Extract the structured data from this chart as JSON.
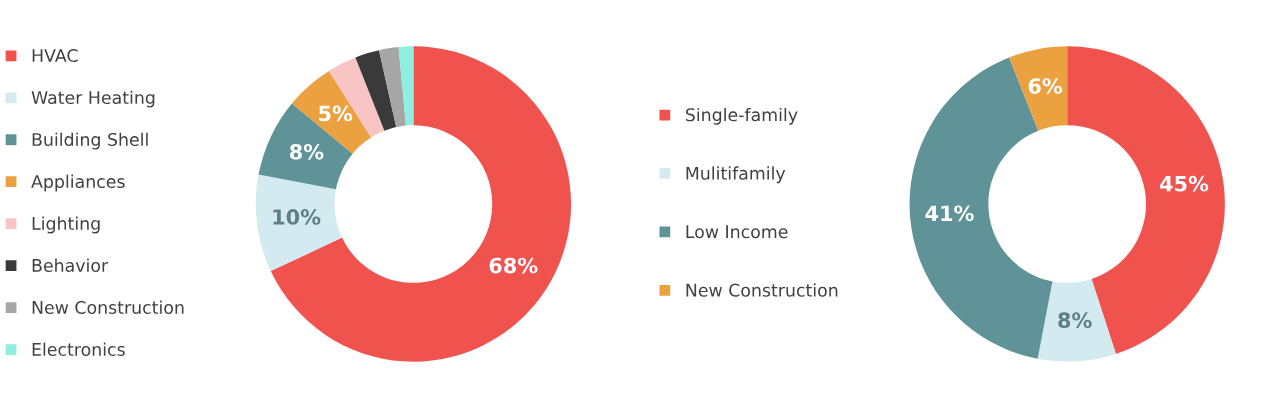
{
  "chart_data": [
    {
      "type": "donut",
      "categories": [
        "HVAC",
        "Water Heating",
        "Building Shell",
        "Appliances",
        "Lighting",
        "Behavior",
        "New Construction",
        "Electronics"
      ],
      "values": [
        68,
        10,
        8,
        5,
        3,
        2.5,
        2,
        1.5
      ],
      "value_labels": [
        "68%",
        "10%",
        "8%",
        "5%",
        null,
        null,
        null,
        null
      ],
      "colors": [
        "#f0524d",
        "#d3eaf1",
        "#5f9398",
        "#eca140",
        "#f9c4c4",
        "#3a3a3a",
        "#a6a6a6",
        "#8eeee0"
      ],
      "legend": "left"
    },
    {
      "type": "donut",
      "categories": [
        "Single-family",
        "Mulitifamily",
        "Low Income",
        "New Construction"
      ],
      "values": [
        45,
        8,
        41,
        6
      ],
      "value_labels": [
        "45%",
        "8%",
        "41%",
        "6%"
      ],
      "colors": [
        "#f0524d",
        "#d3eaf1",
        "#5f9398",
        "#eca140"
      ],
      "legend": "left"
    }
  ]
}
